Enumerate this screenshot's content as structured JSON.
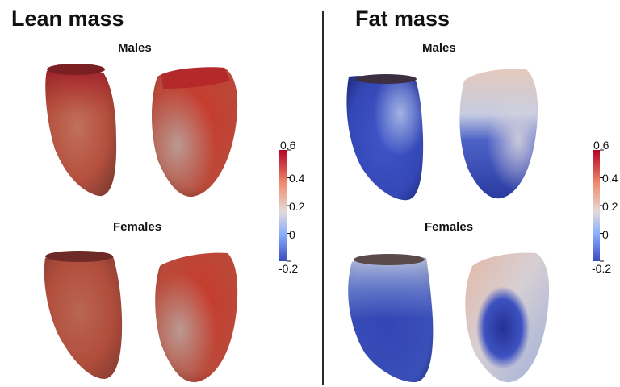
{
  "panels": [
    {
      "title": "Lean mass",
      "rows": [
        {
          "label": "Males"
        },
        {
          "label": "Females"
        }
      ],
      "colorbar": {
        "ticks": [
          "0.6",
          "0.4",
          "0.2",
          "0",
          "-0.2"
        ]
      }
    },
    {
      "title": "Fat mass",
      "rows": [
        {
          "label": "Males"
        },
        {
          "label": "Females"
        }
      ],
      "colorbar": {
        "ticks": [
          "0.6",
          "0.4",
          "0.2",
          "0",
          "-0.2"
        ]
      }
    }
  ],
  "colorscale": {
    "min": -0.2,
    "max": 0.6,
    "stops": [
      "#3a4cc0",
      "#8db0fe",
      "#dcdddd",
      "#f49a7b",
      "#b40426"
    ]
  }
}
